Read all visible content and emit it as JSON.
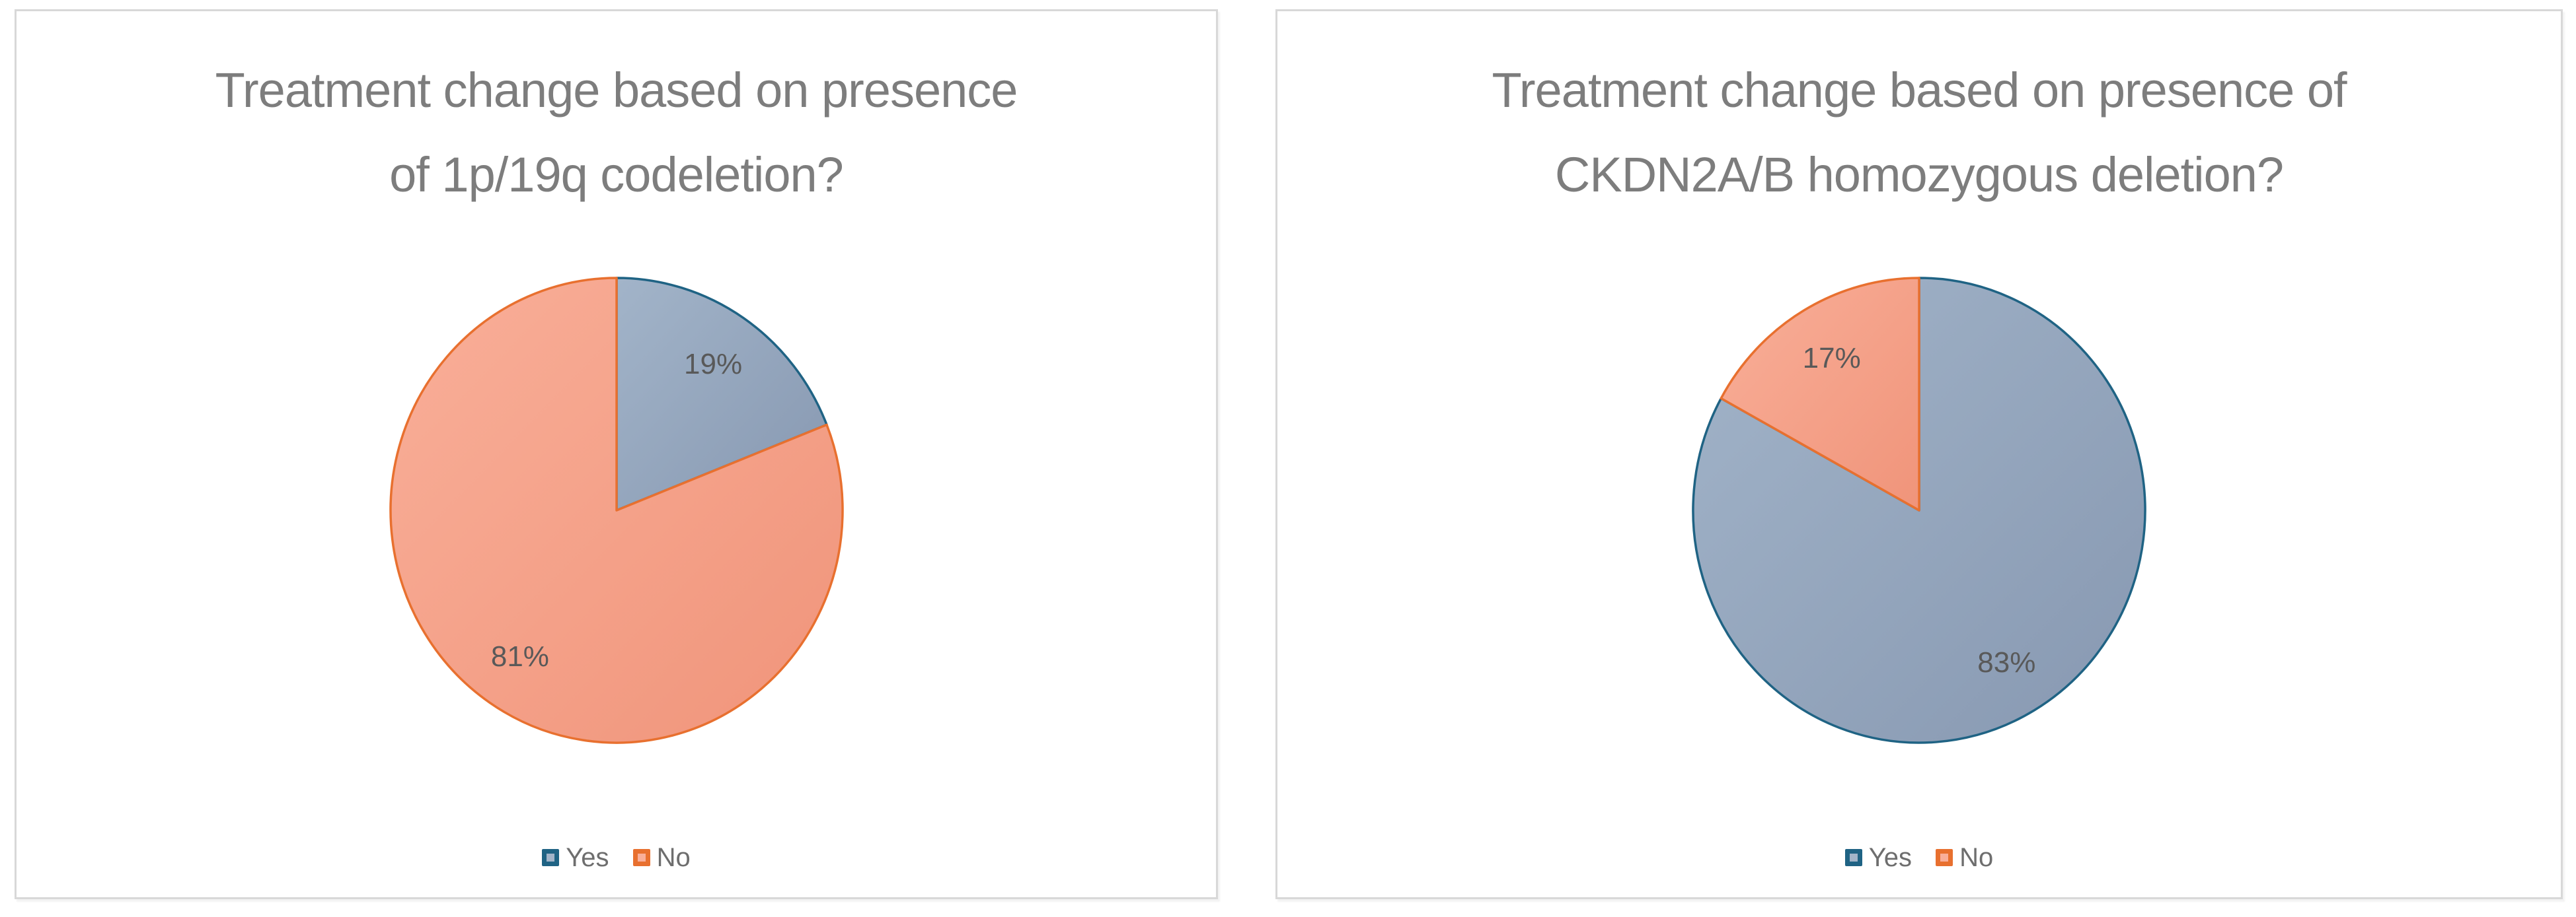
{
  "styles": {
    "background": "#FFFFFF",
    "panel_border": "#D8D8D8",
    "title_color": "#7D7D7D",
    "legend_text_color": "#6E6E6E",
    "label_color": "#595959"
  },
  "chart_data": [
    {
      "type": "pie",
      "title": "Treatment change based on presence of 1p/19q codeletion?",
      "title_lines": [
        "Treatment change based on presence",
        "of 1p/19q codeletion?"
      ],
      "categories": [
        "Yes",
        "No"
      ],
      "values": [
        19,
        81
      ],
      "data_labels": [
        "19%",
        "81%"
      ],
      "start_angle_deg": -90,
      "direction": "clockwise",
      "legend_position": "bottom",
      "label_color": "#595959",
      "slice_styles": [
        {
          "fill_light": "#A2B4C9",
          "fill_dark": "#8798B1",
          "border": "#1F6384"
        },
        {
          "fill_light": "#F9AF99",
          "fill_dark": "#F0947A",
          "border": "#E8702F"
        }
      ]
    },
    {
      "type": "pie",
      "title": "Treatment change based on presence of CKDN2A/B homozygous deletion?",
      "title_lines": [
        "Treatment change based on presence of",
        "CKDN2A/B homozygous deletion?"
      ],
      "categories": [
        "Yes",
        "No"
      ],
      "values": [
        83,
        17
      ],
      "data_labels": [
        "83%",
        "17%"
      ],
      "start_angle_deg": -90,
      "direction": "clockwise",
      "legend_position": "bottom",
      "label_color": "#595959",
      "slice_styles": [
        {
          "fill_light": "#A2B4C9",
          "fill_dark": "#8798B1",
          "border": "#1F6384"
        },
        {
          "fill_light": "#F9AF99",
          "fill_dark": "#F0947A",
          "border": "#E8702F"
        }
      ]
    }
  ]
}
